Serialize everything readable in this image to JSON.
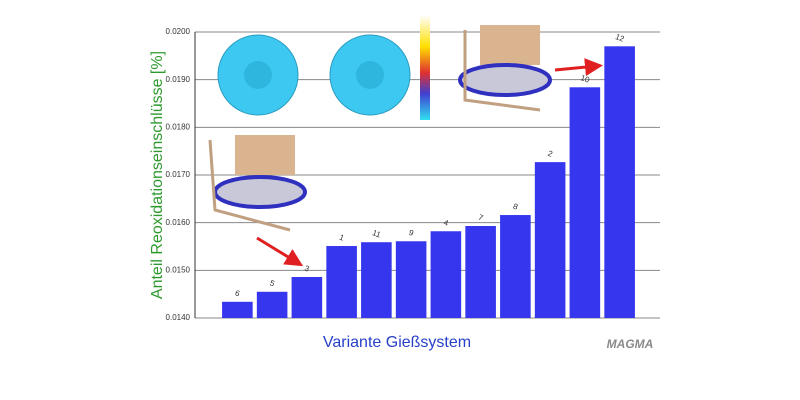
{
  "chart_data": {
    "type": "bar",
    "x_label": "Variante Gießsystem",
    "y_label": "Anteil Reoxidationseinschlüsse [%]",
    "logo": "MAGMA",
    "categories": [
      "6",
      "5",
      "3",
      "1",
      "11",
      "9",
      "4",
      "7",
      "8",
      "2",
      "10",
      "12"
    ],
    "values": [
      0.01434,
      0.01455,
      0.01486,
      0.01551,
      0.01559,
      0.01561,
      0.01582,
      0.01593,
      0.01616,
      0.01727,
      0.01884,
      0.0197
    ],
    "color": "#3636ee",
    "ylim": [
      0.014,
      0.02
    ],
    "yticks": [
      {
        "value": 0.014,
        "label": "0.0140"
      },
      {
        "value": 0.015,
        "label": "0.0150"
      },
      {
        "value": 0.016,
        "label": "0.0160"
      },
      {
        "value": 0.017,
        "label": "0.0170"
      },
      {
        "value": 0.018,
        "label": "0.0180"
      },
      {
        "value": 0.019,
        "label": "0.0190"
      },
      {
        "value": 0.02,
        "label": "0.0200"
      }
    ],
    "grid": true
  }
}
